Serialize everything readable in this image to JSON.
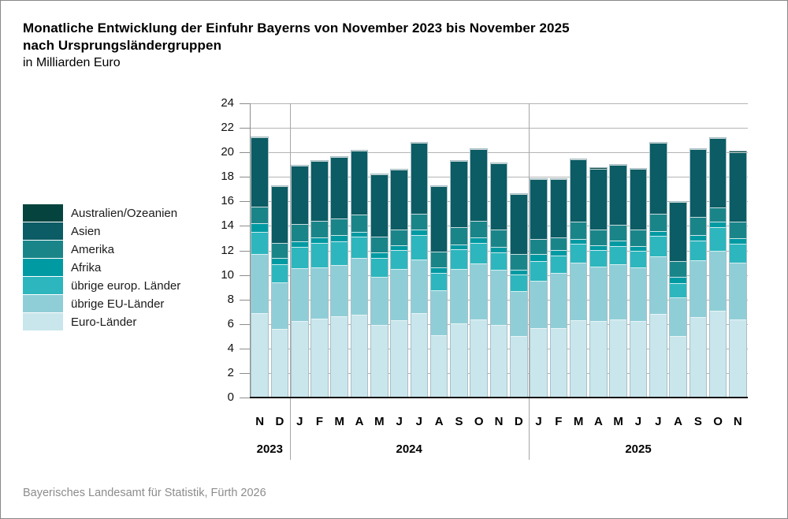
{
  "header": {
    "title_line1": "Monatliche Entwicklung der Einfuhr Bayerns von November 2023 bis November 2025",
    "title_line2": "nach Ursprungsländergruppen",
    "subtitle": "in Milliarden Euro"
  },
  "footer": {
    "source": "Bayerisches Landesamt für Statistik, Fürth 2026"
  },
  "chart_data": {
    "type": "bar",
    "stacked": true,
    "title": "Monatliche Entwicklung der Einfuhr Bayerns von November 2023 bis November 2025 nach Ursprungsländergruppen",
    "unit_label": "in Milliarden Euro",
    "grid": true,
    "legend_position": "left",
    "ylim": [
      0,
      24
    ],
    "ytick_step": 2,
    "categories": [
      "N",
      "D",
      "J",
      "F",
      "M",
      "A",
      "M",
      "J",
      "J",
      "A",
      "S",
      "O",
      "N",
      "D",
      "J",
      "F",
      "M",
      "A",
      "M",
      "J",
      "J",
      "A",
      "S",
      "O",
      "N"
    ],
    "year_groups": [
      {
        "label": "2023",
        "start": 0,
        "count": 2
      },
      {
        "label": "2024",
        "start": 2,
        "count": 12
      },
      {
        "label": "2025",
        "start": 14,
        "count": 11
      }
    ],
    "series": [
      {
        "key": "australien-ozeanien",
        "name": "Australien/Ozeanien",
        "color": "#05443e",
        "values": [
          0.08,
          0.08,
          0.08,
          0.08,
          0.08,
          0.08,
          0.08,
          0.08,
          0.08,
          0.08,
          0.08,
          0.08,
          0.08,
          0.08,
          0.08,
          0.08,
          0.08,
          0.08,
          0.08,
          0.08,
          0.08,
          0.08,
          0.08,
          0.08,
          0.08
        ]
      },
      {
        "key": "asien",
        "name": "Asien",
        "color": "#0b5c64",
        "values": [
          5.7,
          4.7,
          4.82,
          4.97,
          5.03,
          5.25,
          5.12,
          4.95,
          5.85,
          5.4,
          5.46,
          5.9,
          5.45,
          4.97,
          4.9,
          4.75,
          5.14,
          4.98,
          4.89,
          4.99,
          5.83,
          4.85,
          5.53,
          5.7,
          5.75
        ]
      },
      {
        "key": "amerika",
        "name": "Amerika",
        "color": "#1a8589",
        "values": [
          1.38,
          1.23,
          1.41,
          1.3,
          1.37,
          1.45,
          1.24,
          1.27,
          1.3,
          1.28,
          1.39,
          1.36,
          1.38,
          1.25,
          1.25,
          1.08,
          1.39,
          1.33,
          1.29,
          1.3,
          1.39,
          1.29,
          1.51,
          1.15,
          1.34
        ]
      },
      {
        "key": "afrika",
        "name": "Afrika",
        "color": "#009aa3",
        "values": [
          0.7,
          0.5,
          0.47,
          0.49,
          0.5,
          0.38,
          0.45,
          0.39,
          0.41,
          0.44,
          0.39,
          0.43,
          0.44,
          0.43,
          0.54,
          0.44,
          0.43,
          0.39,
          0.44,
          0.43,
          0.43,
          0.52,
          0.43,
          0.43,
          0.48
        ]
      },
      {
        "key": "uebrige-europ-laender",
        "name": "übrige europ. Länder",
        "color": "#2db6bd",
        "values": [
          1.82,
          1.51,
          1.73,
          1.99,
          1.92,
          1.73,
          1.56,
          1.52,
          2.01,
          1.42,
          1.62,
          1.67,
          1.47,
          1.34,
          1.66,
          1.45,
          1.51,
          1.36,
          1.51,
          1.38,
          1.64,
          1.21,
          1.67,
          1.95,
          1.51
        ]
      },
      {
        "key": "uebrige-eu-laender",
        "name": "übrige EU-Länder",
        "color": "#90ced7",
        "values": [
          4.85,
          3.82,
          4.35,
          4.22,
          4.21,
          4.69,
          3.99,
          4.21,
          4.43,
          3.7,
          4.47,
          4.64,
          4.53,
          3.72,
          3.85,
          4.49,
          4.76,
          4.48,
          4.54,
          4.39,
          4.76,
          3.18,
          4.61,
          4.91,
          4.71
        ]
      },
      {
        "key": "euro-laender",
        "name": "Euro-Länder",
        "color": "#c9e6ec",
        "values": [
          6.8,
          5.5,
          6.15,
          6.35,
          6.57,
          6.64,
          5.82,
          6.25,
          6.79,
          5.0,
          5.99,
          6.25,
          5.82,
          4.91,
          5.6,
          5.6,
          6.2,
          6.14,
          6.29,
          6.14,
          6.72,
          4.91,
          6.5,
          7.0,
          6.25
        ]
      }
    ]
  },
  "style_colors": {
    "gridline": "#b4b4b4",
    "baseline": "#111111",
    "axis": "#8c8c8c",
    "bar_stroke": "#a9c0c7",
    "separator": "#a6a6a6",
    "footer_text": "#8c8c8c"
  }
}
